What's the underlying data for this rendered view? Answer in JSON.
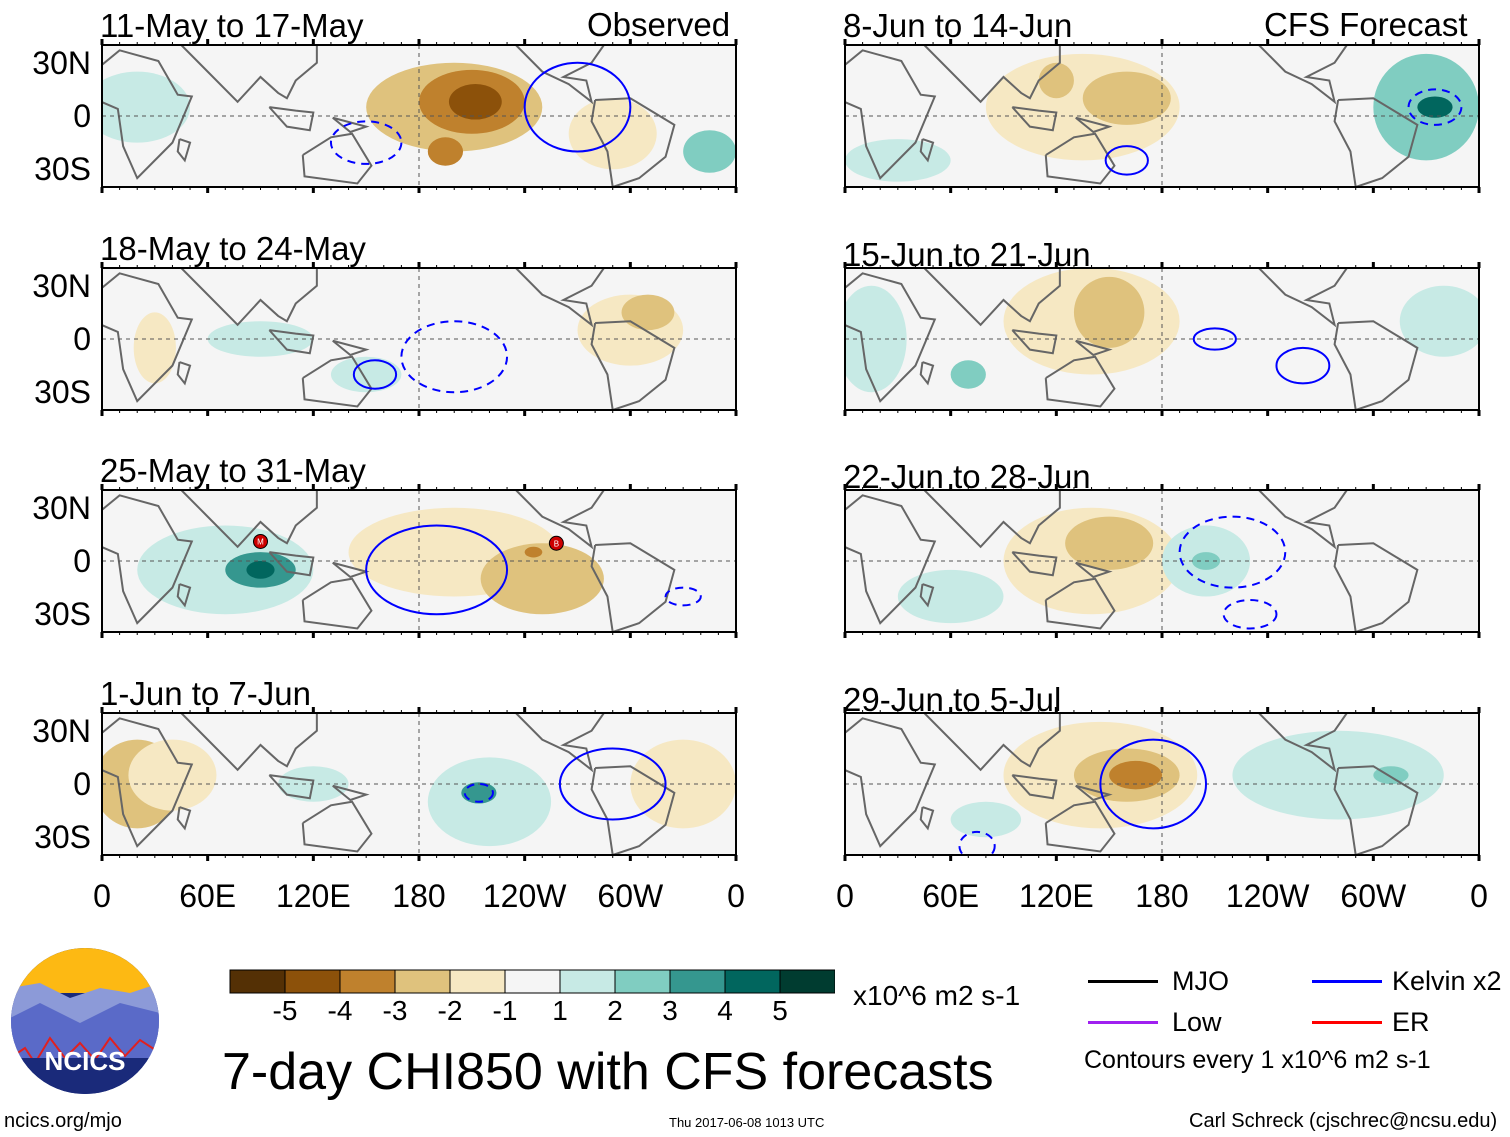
{
  "labels": {
    "observed": "Observed",
    "forecast": "CFS Forecast"
  },
  "lat_ticks": [
    "30N",
    "0",
    "30S"
  ],
  "lon_ticks": [
    "0",
    "60E",
    "120E",
    "180",
    "120W",
    "60W",
    "0"
  ],
  "colorbar": {
    "ticks": [
      "-5",
      "-4",
      "-3",
      "-2",
      "-1",
      "1",
      "2",
      "3",
      "4",
      "5"
    ],
    "units": "x10^6 m2 s-1",
    "colors": [
      "#543005",
      "#8c510a",
      "#bf812d",
      "#dfc27d",
      "#f6e8c3",
      "#f5f5f5",
      "#c7eae5",
      "#80cdc1",
      "#35978f",
      "#01665e",
      "#003c30"
    ]
  },
  "legend": {
    "mjo": "MJO",
    "kelvin": "Kelvin x2",
    "low": "Low",
    "er": "ER",
    "contours": "Contours every 1 x10^6 m2 s-1",
    "colors": {
      "mjo": "#000000",
      "kelvin": "#0000ff",
      "low": "#a020f0",
      "er": "#ff0000"
    }
  },
  "title": "7-day CHI850 with CFS forecasts",
  "logo": "NCICS",
  "footer": {
    "url": "ncics.org/mjo",
    "timestamp": "Thu 2017-06-08 1013 UTC",
    "author": "Carl Schreck (cjschrec@ncsu.edu)"
  },
  "chart_data": {
    "type": "heatmap",
    "xlim": [
      0,
      360
    ],
    "ylim": [
      -40,
      40
    ],
    "panels": [
      {
        "title": "11-May to 17-May",
        "anom": [
          [
            200,
            5,
            50,
            25,
            -2.5
          ],
          [
            210,
            8,
            30,
            18,
            -3.5
          ],
          [
            212,
            8,
            15,
            10,
            -5
          ],
          [
            195,
            -20,
            10,
            8,
            -3.5
          ],
          [
            290,
            -10,
            25,
            20,
            -1.5
          ],
          [
            20,
            5,
            30,
            20,
            1.5
          ],
          [
            345,
            -20,
            15,
            12,
            2.5
          ]
        ],
        "kelvin": [
          [
            270,
            5,
            30,
            25,
            1
          ],
          [
            150,
            -15,
            20,
            12,
            0
          ]
        ]
      },
      {
        "title": "18-May to 24-May",
        "anom": [
          [
            30,
            -5,
            12,
            20,
            -1.5
          ],
          [
            90,
            0,
            30,
            10,
            1.5
          ],
          [
            300,
            5,
            30,
            20,
            -1.5
          ],
          [
            310,
            15,
            15,
            10,
            -2.5
          ],
          [
            150,
            -20,
            20,
            10,
            1.5
          ]
        ],
        "kelvin": [
          [
            200,
            -10,
            30,
            20,
            0
          ],
          [
            155,
            -20,
            12,
            8,
            1
          ]
        ]
      },
      {
        "title": "25-May to 31-May",
        "anom": [
          [
            70,
            -5,
            50,
            25,
            2
          ],
          [
            90,
            -5,
            20,
            10,
            3.5
          ],
          [
            90,
            -5,
            8,
            5,
            4.5
          ],
          [
            200,
            5,
            60,
            25,
            -1.5
          ],
          [
            250,
            -10,
            35,
            20,
            -2.5
          ],
          [
            245,
            5,
            5,
            3,
            -3.5
          ]
        ],
        "kelvin": [
          [
            190,
            -5,
            40,
            25,
            1
          ],
          [
            330,
            -20,
            10,
            5,
            0
          ]
        ],
        "storms": [
          [
            90,
            11,
            "M"
          ],
          [
            258,
            10,
            "B"
          ]
        ]
      },
      {
        "title": "1-Jun to 7-Jun",
        "anom": [
          [
            20,
            0,
            25,
            25,
            -2.5
          ],
          [
            40,
            5,
            25,
            20,
            -1.5
          ],
          [
            220,
            -10,
            35,
            25,
            2
          ],
          [
            214,
            -5,
            10,
            6,
            3.5
          ],
          [
            330,
            0,
            30,
            25,
            -1.5
          ],
          [
            120,
            0,
            20,
            10,
            1.5
          ]
        ],
        "kelvin": [
          [
            214,
            -5,
            8,
            5,
            0
          ],
          [
            290,
            0,
            30,
            20,
            1
          ]
        ]
      },
      {
        "title": "8-Jun to 14-Jun",
        "anom": [
          [
            135,
            5,
            55,
            30,
            -1.5
          ],
          [
            160,
            10,
            25,
            15,
            -2.5
          ],
          [
            120,
            20,
            10,
            10,
            -3
          ],
          [
            330,
            5,
            30,
            30,
            2.5
          ],
          [
            335,
            5,
            10,
            6,
            4.5
          ],
          [
            30,
            -25,
            30,
            12,
            1.5
          ]
        ],
        "kelvin": [
          [
            335,
            5,
            15,
            10,
            0
          ],
          [
            160,
            -25,
            12,
            8,
            1
          ]
        ]
      },
      {
        "title": "15-Jun to 21-Jun",
        "anom": [
          [
            140,
            10,
            50,
            30,
            -1.5
          ],
          [
            150,
            15,
            20,
            20,
            -2.5
          ],
          [
            15,
            0,
            20,
            30,
            1.5
          ],
          [
            340,
            10,
            25,
            20,
            2
          ],
          [
            70,
            -20,
            10,
            8,
            2.5
          ]
        ],
        "kelvin": [
          [
            210,
            0,
            12,
            6,
            1
          ],
          [
            260,
            -15,
            15,
            10,
            1
          ]
        ]
      },
      {
        "title": "22-Jun to 28-Jun",
        "anom": [
          [
            140,
            0,
            50,
            30,
            -1.5
          ],
          [
            150,
            10,
            25,
            15,
            -2.5
          ],
          [
            205,
            0,
            25,
            20,
            1.5
          ],
          [
            205,
            0,
            8,
            5,
            2.5
          ],
          [
            60,
            -20,
            30,
            15,
            1.5
          ]
        ],
        "kelvin": [
          [
            220,
            5,
            30,
            20,
            0
          ],
          [
            230,
            -30,
            15,
            8,
            0
          ]
        ]
      },
      {
        "title": "29-Jun to 5-Jul",
        "anom": [
          [
            145,
            5,
            55,
            30,
            -1.5
          ],
          [
            160,
            5,
            30,
            15,
            -2.5
          ],
          [
            165,
            5,
            15,
            8,
            -3.5
          ],
          [
            280,
            5,
            60,
            25,
            1.5
          ],
          [
            310,
            5,
            10,
            5,
            2.5
          ],
          [
            80,
            -20,
            20,
            10,
            1.5
          ]
        ],
        "kelvin": [
          [
            175,
            0,
            30,
            25,
            1
          ],
          [
            75,
            -35,
            10,
            8,
            0
          ]
        ]
      }
    ]
  }
}
